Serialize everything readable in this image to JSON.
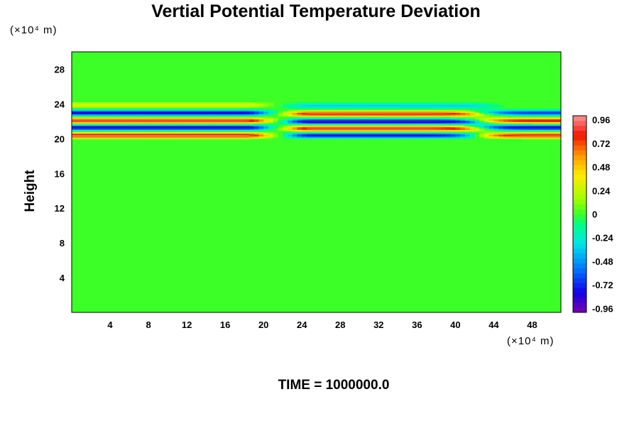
{
  "chart_data": {
    "type": "heatmap",
    "title": "Vertial Potential Temperature Deviation",
    "ylabel": "Height",
    "xlabel": "",
    "x_unit": "(×10⁴ m)",
    "y_unit": "(×10⁴ m)",
    "footer": "TIME = 1000000.0",
    "xlim": [
      0,
      51
    ],
    "ylim": [
      0,
      30
    ],
    "x_ticks": [
      4,
      8,
      12,
      16,
      20,
      24,
      28,
      32,
      36,
      40,
      44,
      48
    ],
    "y_ticks": [
      4,
      8,
      12,
      16,
      20,
      24,
      28
    ],
    "colorbar": {
      "range": [
        -1,
        1
      ],
      "tick_values": [
        0.96,
        0.72,
        0.48,
        0.24,
        0,
        -0.24,
        -0.48,
        -0.72,
        -0.96
      ],
      "tick_labels": [
        "0.96",
        "0.72",
        "0.48",
        "0.24",
        "0",
        "-0.24",
        "-0.48",
        "-0.72",
        "-0.96"
      ]
    },
    "wave_bands": [
      {
        "x_range": [
          0,
          18
        ],
        "heights": [
          20.4,
          21.3,
          22.1,
          23.0,
          23.9
        ],
        "values": [
          0.95,
          -0.9,
          0.95,
          -0.85,
          0.3
        ]
      },
      {
        "x_range": [
          25,
          41
        ],
        "heights": [
          20.4,
          21.2,
          22.0,
          22.9,
          23.8
        ],
        "values": [
          -0.8,
          0.95,
          -0.95,
          0.9,
          -0.35
        ]
      },
      {
        "x_range": [
          44,
          51
        ],
        "heights": [
          20.4,
          21.3,
          22.1,
          23.0
        ],
        "values": [
          0.9,
          -0.9,
          0.85,
          -0.7
        ]
      }
    ]
  }
}
